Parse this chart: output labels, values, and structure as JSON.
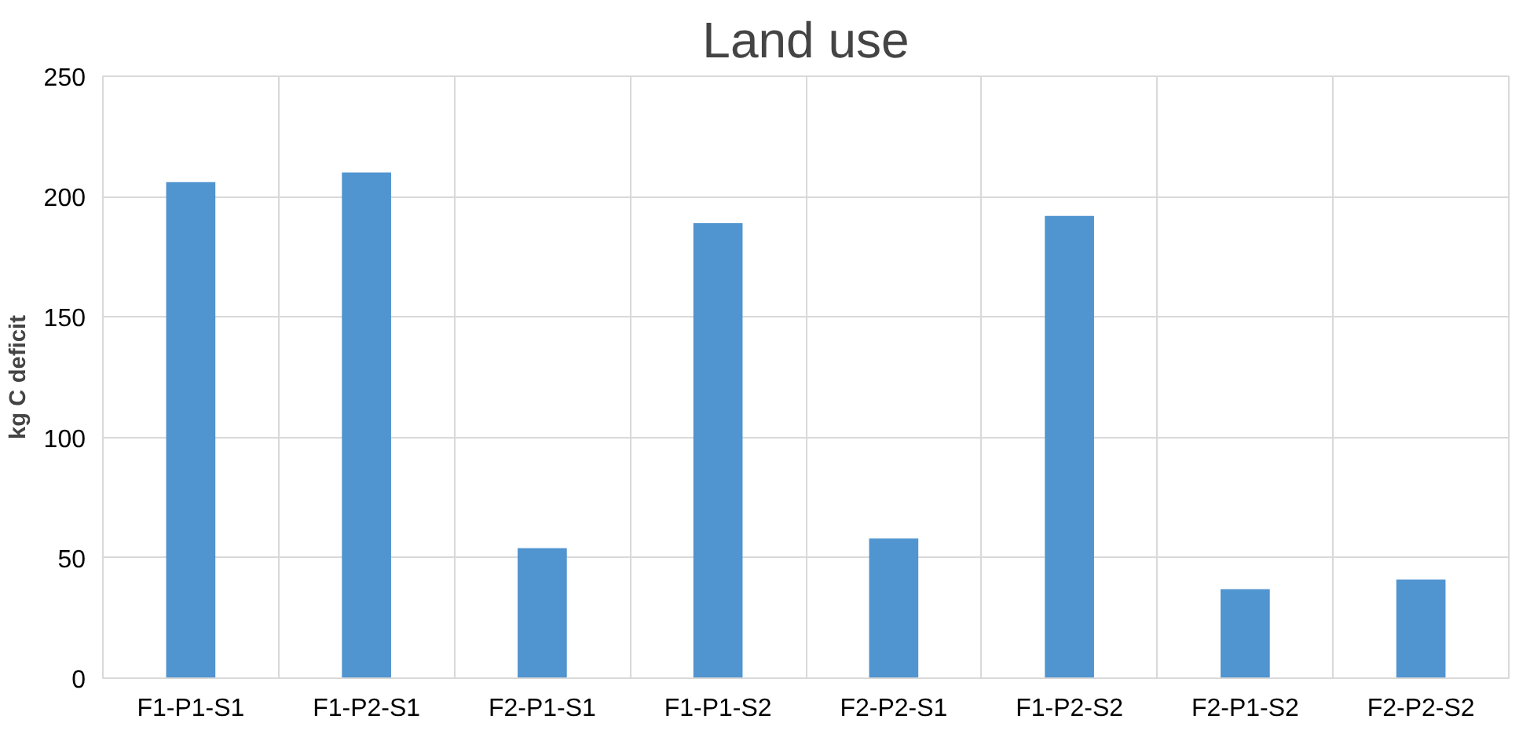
{
  "chart_data": {
    "type": "bar",
    "title": "Land use",
    "ylabel": "kg C deficit",
    "categories": [
      "F1-P1-S1",
      "F1-P2-S1",
      "F2-P1-S1",
      "F1-P1-S2",
      "F2-P2-S1",
      "F1-P2-S2",
      "F2-P1-S2",
      "F2-P2-S2"
    ],
    "values": [
      206,
      210,
      54,
      189,
      58,
      192,
      37,
      41
    ],
    "color": "#5094d0",
    "ylim": [
      0,
      250
    ],
    "yticks": [
      0,
      50,
      100,
      150,
      200,
      250
    ],
    "grid": true
  }
}
